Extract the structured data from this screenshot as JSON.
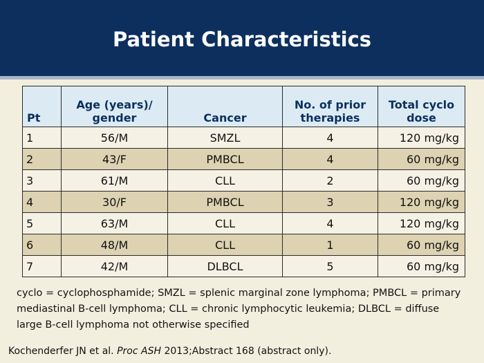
{
  "title": "Patient Characteristics",
  "table": {
    "headers": {
      "pt": "Pt",
      "age_line1": "Age (years)/",
      "age_line2": "gender",
      "cancer": "Cancer",
      "therapies_line1": "No. of prior",
      "therapies_line2": "therapies",
      "dose_line1": "Total cyclo",
      "dose_line2": "dose"
    },
    "rows": [
      {
        "pt": "1",
        "age": "56/M",
        "cancer": "SMZL",
        "therapies": "4",
        "dose": "120 mg/kg"
      },
      {
        "pt": "2",
        "age": "43/F",
        "cancer": "PMBCL",
        "therapies": "4",
        "dose": "60 mg/kg"
      },
      {
        "pt": "3",
        "age": "61/M",
        "cancer": "CLL",
        "therapies": "2",
        "dose": "60 mg/kg"
      },
      {
        "pt": "4",
        "age": "30/F",
        "cancer": "PMBCL",
        "therapies": "3",
        "dose": "120 mg/kg"
      },
      {
        "pt": "5",
        "age": "63/M",
        "cancer": "CLL",
        "therapies": "4",
        "dose": "120 mg/kg"
      },
      {
        "pt": "6",
        "age": "48/M",
        "cancer": "CLL",
        "therapies": "1",
        "dose": "60 mg/kg"
      },
      {
        "pt": "7",
        "age": "42/M",
        "cancer": "DLBCL",
        "therapies": "5",
        "dose": "60 mg/kg"
      }
    ]
  },
  "footnote": "cyclo = cyclophosphamide; SMZL = splenic marginal zone lymphoma; PMBCL = primary mediastinal B-cell lymphoma; CLL = chronic lymphocytic leukemia; DLBCL = diffuse large B-cell lymphoma not otherwise specified",
  "citation": {
    "authors": "Kochenderfer JN et al.",
    "journal": "Proc ASH",
    "rest": "2013;Abstract 168 (abstract only)."
  },
  "colors": {
    "header_bg": "#0c2f5e",
    "page_bg": "#f3efdf",
    "table_header_bg": "#dcebf3",
    "row_alt_bg": "#ddd2b1"
  }
}
